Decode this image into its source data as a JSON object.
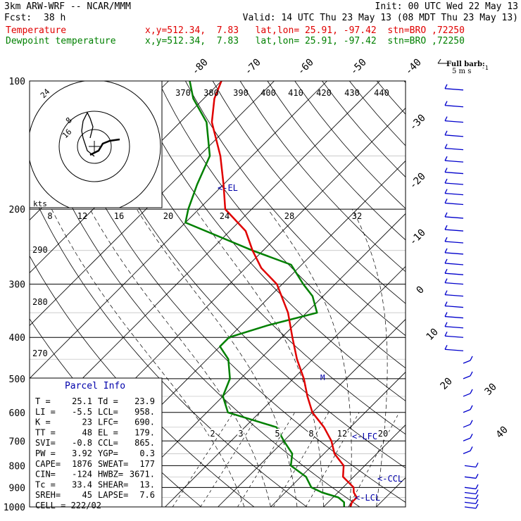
{
  "header": {
    "model": "3km ARW-WRF -- NCAR/MMM",
    "init": "Init: 00 UTC Wed 22 May 13",
    "fcst_label": "Fcst:",
    "fcst_hours": "38 h",
    "valid": "Valid: 14 UTC Thu 23 May 13 (08 MDT Thu 23 May 13)",
    "temp_label": "Temperature",
    "temp_info": "x,y=512.34,  7.83   lat,lon= 25.91, -97.42  stn=BRO ,72250",
    "dew_label": "Dewpoint temperature",
    "dew_info": "x,y=512.34,  7.83   lat,lon= 25.91, -97.42  stn=BRO ,72250"
  },
  "colors": {
    "temperature": "#e00000",
    "dewpoint": "#008000",
    "parcel_title": "#0000aa",
    "barbs": "#0000cc"
  },
  "barb_legend": {
    "title": "Full barb:",
    "units": "5 m s",
    "exp": "-1"
  },
  "hodograph": {
    "units": "kts",
    "ring_labels": [
      "8",
      "16",
      "24"
    ]
  },
  "parcel": {
    "title": "Parcel Info",
    "rows": [
      {
        "l1": "T  =",
        "v1": "25.1",
        "l2": "Td =",
        "v2": "23.9"
      },
      {
        "l1": "LI =",
        "v1": "-5.5",
        "l2": "LCL=",
        "v2": "958."
      },
      {
        "l1": "K  =",
        "v1": "23",
        "l2": "LFC=",
        "v2": "690."
      },
      {
        "l1": "TT =",
        "v1": "48",
        "l2": "EL =",
        "v2": "179."
      },
      {
        "l1": "SVI=",
        "v1": "-0.8",
        "l2": "CCL=",
        "v2": "865."
      },
      {
        "l1": "PW =",
        "v1": "3.92",
        "l2": "YGP=",
        "v2": "0.3"
      },
      {
        "l1": "CAPE=",
        "v1": "1876",
        "l2": "SWEAT=",
        "v2": "177"
      },
      {
        "l1": "CIN=",
        "v1": "-124",
        "l2": "HWBZ=",
        "v2": "3671."
      },
      {
        "l1": "Tc =",
        "v1": "33.4",
        "l2": "SHEAR=",
        "v2": "13."
      },
      {
        "l1": "SREH=",
        "v1": "45",
        "l2": "LAPSE=",
        "v2": "7.6"
      }
    ],
    "cell": "CELL = 222/02"
  },
  "chart_data": {
    "type": "line",
    "title": "",
    "y_axis": {
      "label": "",
      "scale": "log",
      "range": [
        1000,
        100
      ],
      "ticks": [
        100,
        200,
        300,
        400,
        500,
        600,
        700,
        800,
        900,
        1000
      ]
    },
    "isotherm_labels": [
      "-80",
      "-70",
      "-60",
      "-50",
      "-40",
      "-30",
      "-20",
      "-10",
      "0",
      "10",
      "20",
      "30",
      "40"
    ],
    "theta_labels": [
      "370",
      "380",
      "390",
      "400",
      "410",
      "420",
      "430",
      "440"
    ],
    "theta_left_labels": [
      "290",
      "280",
      "270"
    ],
    "mixing_ratio_labels": [
      "2",
      "3",
      "5",
      "8",
      "12",
      "20"
    ],
    "markers": [
      {
        "label": "<-EL",
        "p": 179
      },
      {
        "label": "<-LFC",
        "p": 690
      },
      {
        "label": "<-CCL",
        "p": 865
      },
      {
        "label": "<-LCL",
        "p": 958
      }
    ],
    "series": [
      {
        "name": "Temperature",
        "points": [
          [
            1000,
            25.1
          ],
          [
            975,
            24.5
          ],
          [
            950,
            24.5
          ],
          [
            925,
            23
          ],
          [
            900,
            22
          ],
          [
            850,
            18
          ],
          [
            800,
            16
          ],
          [
            750,
            12
          ],
          [
            700,
            9
          ],
          [
            650,
            5
          ],
          [
            600,
            0
          ],
          [
            550,
            -4
          ],
          [
            500,
            -8
          ],
          [
            450,
            -13
          ],
          [
            400,
            -18
          ],
          [
            350,
            -23.5
          ],
          [
            300,
            -31
          ],
          [
            275,
            -37
          ],
          [
            250,
            -42
          ],
          [
            225,
            -47
          ],
          [
            200,
            -55
          ],
          [
            175,
            -60
          ],
          [
            150,
            -66
          ],
          [
            125,
            -74
          ],
          [
            110,
            -78
          ],
          [
            100,
            -80
          ]
        ]
      },
      {
        "name": "Dewpoint temperature",
        "points": [
          [
            1000,
            23.9
          ],
          [
            975,
            23
          ],
          [
            950,
            21
          ],
          [
            925,
            17
          ],
          [
            900,
            14
          ],
          [
            850,
            11
          ],
          [
            800,
            6
          ],
          [
            750,
            4
          ],
          [
            700,
            0
          ],
          [
            650,
            -4
          ],
          [
            600,
            -16
          ],
          [
            550,
            -20
          ],
          [
            500,
            -22
          ],
          [
            450,
            -26
          ],
          [
            420,
            -30
          ],
          [
            400,
            -30
          ],
          [
            375,
            -25
          ],
          [
            350,
            -18
          ],
          [
            320,
            -22
          ],
          [
            300,
            -26
          ],
          [
            270,
            -32
          ],
          [
            250,
            -42
          ],
          [
            215,
            -60
          ],
          [
            200,
            -62
          ],
          [
            175,
            -65
          ],
          [
            150,
            -68
          ],
          [
            125,
            -75
          ],
          [
            110,
            -82
          ],
          [
            100,
            -86
          ]
        ]
      }
    ],
    "wind_barbs_p": [
      105,
      115,
      125,
      135,
      145,
      155,
      165,
      175,
      185,
      195,
      210,
      225,
      240,
      255,
      270,
      285,
      300,
      320,
      340,
      360,
      380,
      400,
      430,
      460,
      500,
      550,
      600,
      650,
      700,
      750,
      800,
      850,
      900,
      925,
      950,
      975,
      1000
    ]
  }
}
